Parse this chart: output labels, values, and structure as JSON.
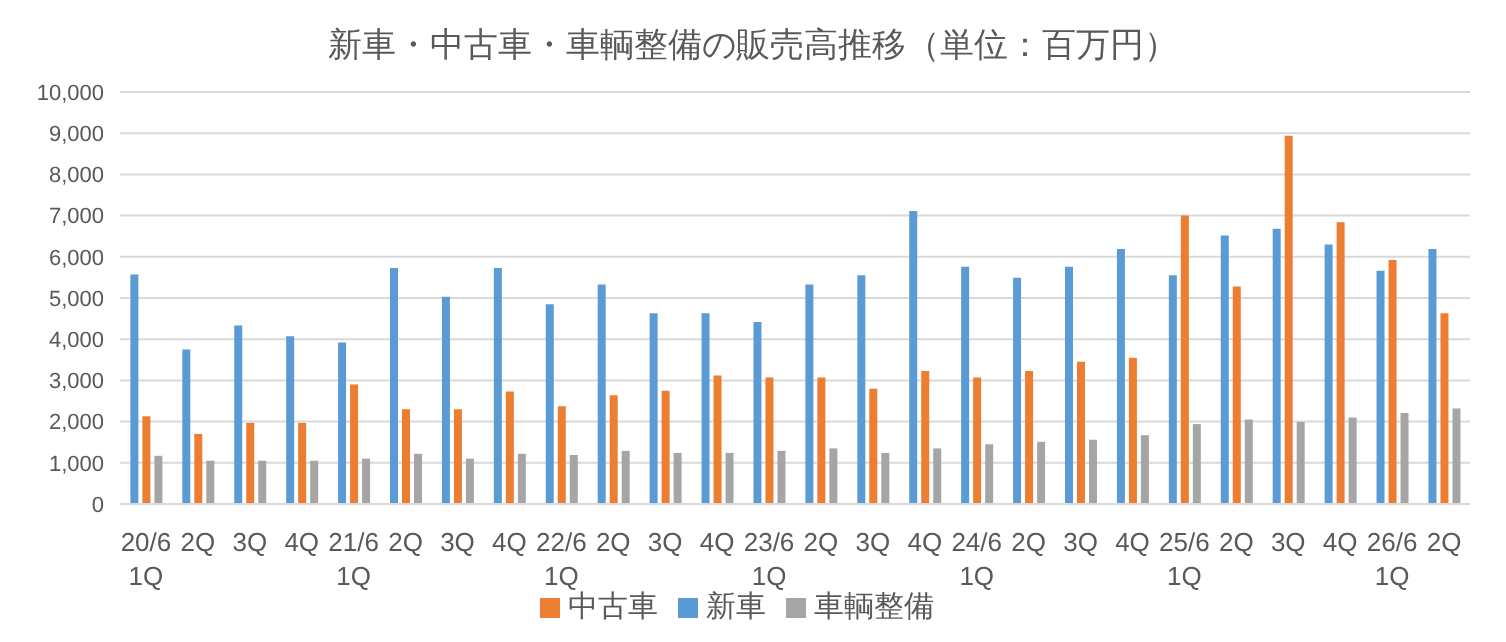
{
  "chart_data": {
    "type": "bar",
    "title": "新車・中古車・車輌整備の販売高推移（単位：百万円）",
    "categories": [
      "20/6\n1Q",
      "2Q",
      "3Q",
      "4Q",
      "21/6\n1Q",
      "2Q",
      "3Q",
      "4Q",
      "22/6\n1Q",
      "2Q",
      "3Q",
      "4Q",
      "23/6\n1Q",
      "2Q",
      "3Q",
      "4Q",
      "24/6\n1Q",
      "2Q",
      "3Q",
      "4Q",
      "25/6\n1Q",
      "2Q",
      "3Q",
      "4Q",
      "26/6\n1Q",
      "2Q"
    ],
    "series": [
      {
        "name": "新車",
        "color": "#5b9bd5",
        "values": [
          5570,
          3750,
          4330,
          4070,
          3920,
          5730,
          5030,
          5730,
          4850,
          5330,
          4630,
          4630,
          4420,
          5330,
          5550,
          7110,
          5760,
          5490,
          5760,
          6190,
          5550,
          6520,
          6680,
          6300,
          5660,
          6190
        ]
      },
      {
        "name": "中古車",
        "color": "#ed7d31",
        "values": [
          2130,
          1700,
          1970,
          1970,
          2900,
          2300,
          2300,
          2730,
          2370,
          2640,
          2750,
          3120,
          3070,
          3070,
          2800,
          3230,
          3070,
          3230,
          3450,
          3550,
          7000,
          5280,
          8940,
          6840,
          5920,
          4630
        ]
      },
      {
        "name": "車輌整備",
        "color": "#a5a5a5",
        "values": [
          1170,
          1050,
          1050,
          1050,
          1100,
          1220,
          1100,
          1220,
          1190,
          1290,
          1240,
          1240,
          1290,
          1350,
          1240,
          1350,
          1450,
          1510,
          1560,
          1670,
          1940,
          2050,
          1990,
          2100,
          2210,
          2320
        ]
      }
    ],
    "ylim": [
      0,
      10000
    ],
    "yticks": [
      0,
      {
        "value": 1000,
        "label": "1,000"
      },
      {
        "value": 2000,
        "label": "2,000"
      },
      {
        "value": 3000,
        "label": "3,000"
      },
      {
        "value": 4000,
        "label": "4,000"
      },
      {
        "value": 5000,
        "label": "5,000"
      },
      {
        "value": 6000,
        "label": "6,000"
      },
      {
        "value": 7000,
        "label": "7,000"
      },
      {
        "value": 8000,
        "label": "8,000"
      },
      {
        "value": 9000,
        "label": "9,000"
      },
      {
        "value": 10000,
        "label": "10,000"
      }
    ],
    "grid": "y",
    "legend": "bottom"
  }
}
